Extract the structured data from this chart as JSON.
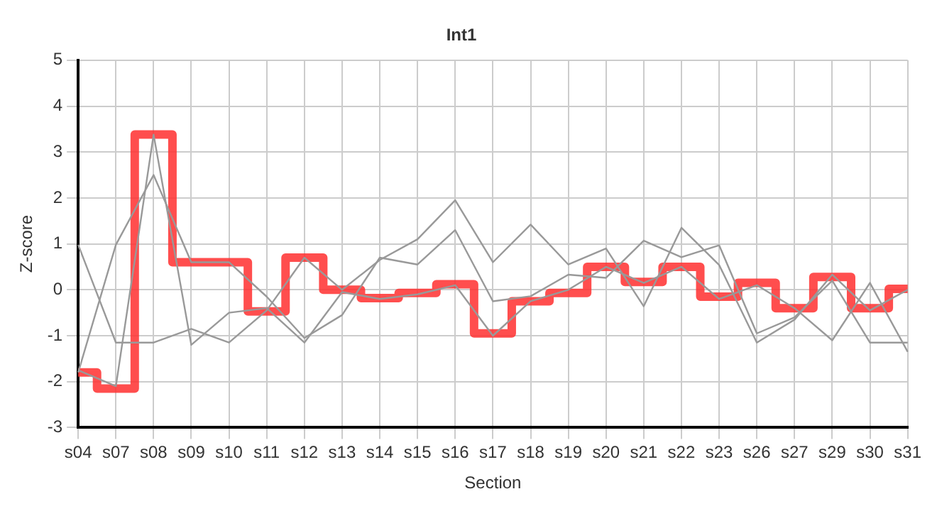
{
  "chart_data": {
    "type": "line",
    "title": "Int1",
    "xlabel": "Section",
    "ylabel": "Z-score",
    "categories": [
      "s04",
      "s07",
      "s08",
      "s09",
      "s10",
      "s11",
      "s12",
      "s13",
      "s14",
      "s15",
      "s16",
      "s17",
      "s18",
      "s19",
      "s20",
      "s21",
      "s22",
      "s23",
      "s26",
      "s27",
      "s29",
      "s30",
      "s31"
    ],
    "series": [
      {
        "color": "#999999",
        "values": [
          0.98,
          -1.15,
          -1.15,
          -0.85,
          -1.15,
          -0.45,
          0.7,
          0.0,
          0.65,
          1.1,
          1.95,
          0.6,
          1.42,
          0.55,
          0.9,
          -0.36,
          1.35,
          0.54,
          -1.15,
          -0.65,
          0.33,
          -0.45,
          0.0
        ]
      },
      {
        "color": "#999999",
        "values": [
          -1.8,
          0.98,
          2.5,
          0.6,
          0.6,
          -0.15,
          -1.05,
          -0.55,
          0.7,
          0.55,
          1.3,
          -0.25,
          -0.14,
          0.33,
          0.26,
          1.07,
          0.71,
          0.97,
          -0.95,
          -0.6,
          0.2,
          -1.15,
          -1.15
        ]
      },
      {
        "color": "#999999",
        "values": [
          -1.75,
          -2.1,
          3.38,
          -1.2,
          -0.5,
          -0.4,
          -1.15,
          -0.05,
          -0.2,
          -0.1,
          0.1,
          -1.0,
          -0.25,
          0.0,
          0.5,
          0.15,
          0.5,
          -0.2,
          0.1,
          -0.4,
          -1.1,
          0.15,
          -1.35
        ]
      },
      {
        "type": "step",
        "color": "#ff3333",
        "values": [
          -1.8,
          -2.15,
          3.38,
          0.6,
          0.6,
          -0.47,
          0.7,
          0.0,
          -0.18,
          -0.07,
          0.12,
          -0.95,
          -0.25,
          -0.07,
          0.5,
          0.17,
          0.5,
          -0.15,
          0.15,
          -0.4,
          0.28,
          -0.4,
          0.02
        ]
      }
    ],
    "ylim": [
      -3,
      5
    ],
    "yticks": [
      -3,
      -2,
      -1,
      0,
      1,
      2,
      3,
      4,
      5
    ],
    "grid": true,
    "legend": false,
    "marker": "none"
  }
}
